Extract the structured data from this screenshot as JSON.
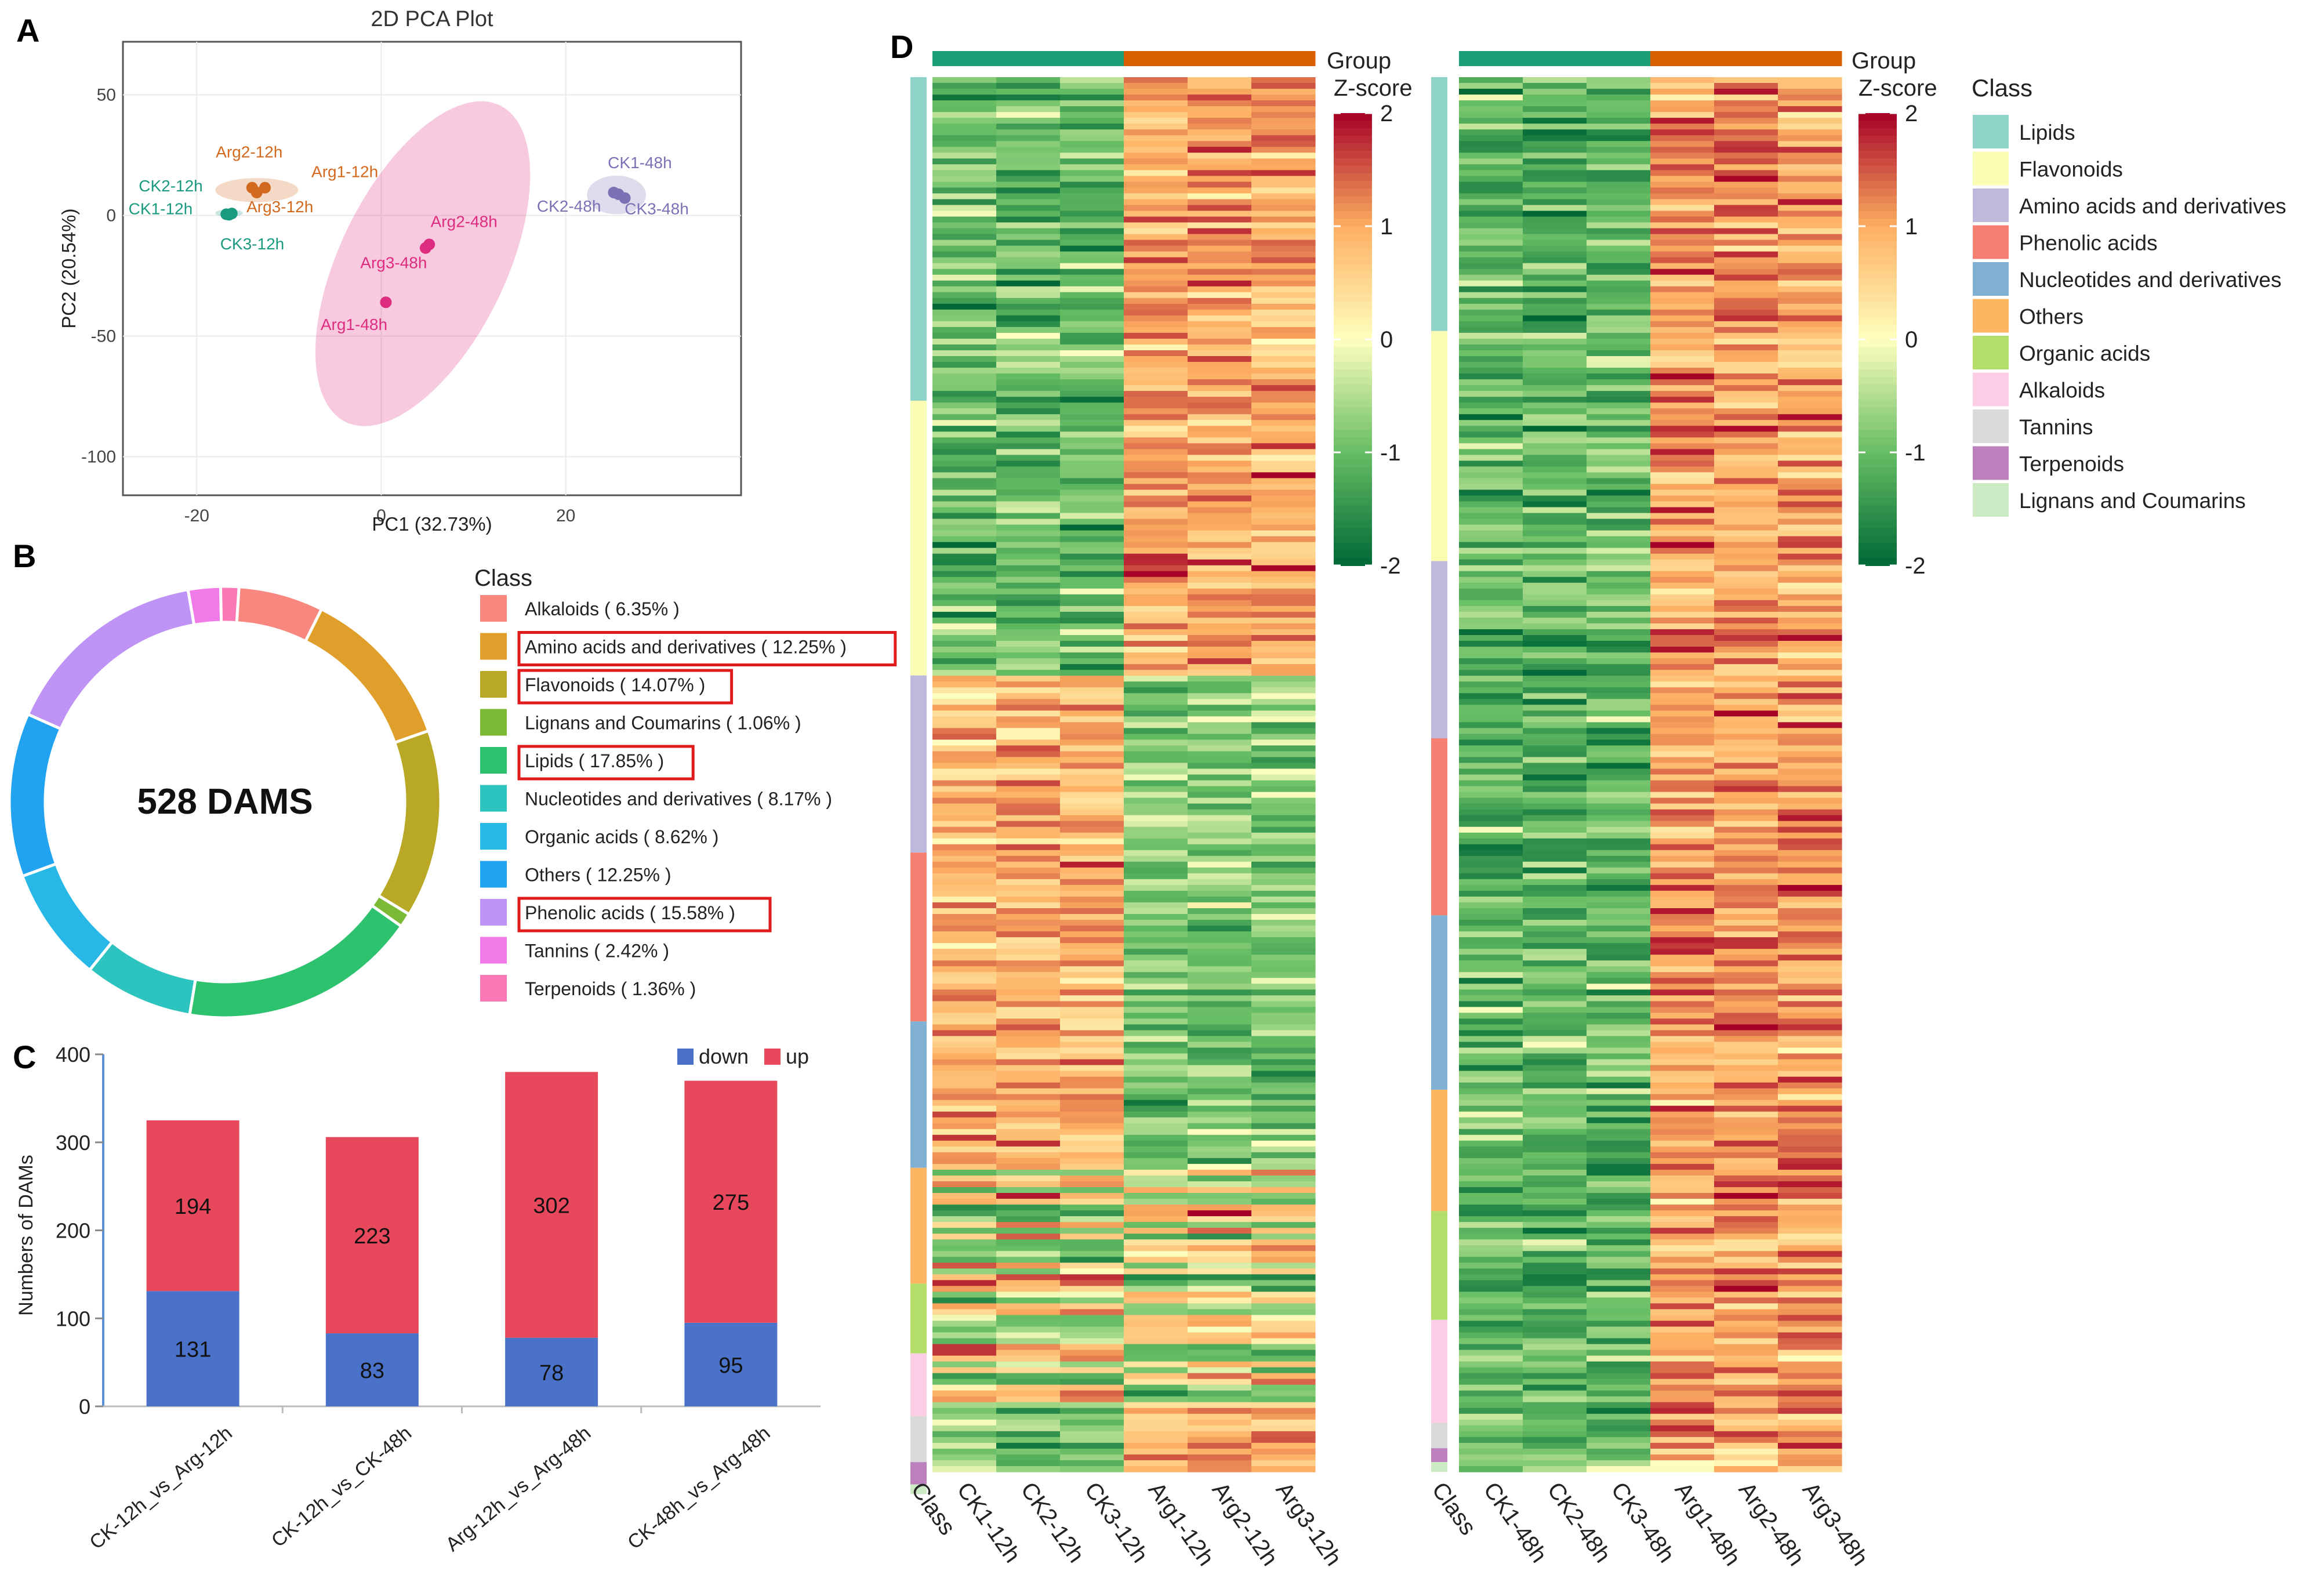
{
  "chart_data": [
    {
      "panel": "A",
      "type": "scatter",
      "title": "2D PCA Plot",
      "xlabel": "PC1 (32.73%)",
      "ylabel": "PC2 (20.54%)",
      "xlim": [
        -28,
        39
      ],
      "ylim": [
        -116,
        72
      ],
      "xticks": [
        -20,
        0,
        20
      ],
      "xtick_labels": [
        "-20",
        "0",
        "20"
      ],
      "yticks": [
        50,
        0,
        -50,
        -100
      ],
      "ytick_labels": [
        "50",
        "0",
        "-50",
        "-100"
      ],
      "groups": [
        {
          "name": "CK-12h",
          "color": "#1a9a80",
          "ellipse": {
            "cx": -16.5,
            "cy": 1,
            "rx": 1.5,
            "ry": 1.5,
            "angle": 0
          },
          "points": [
            {
              "label": "CK1-12h",
              "x": -16.8,
              "y": 0.5
            },
            {
              "label": "CK2-12h",
              "x": -16.2,
              "y": 0.8
            },
            {
              "label": "CK3-12h",
              "x": -16.5,
              "y": 0.3
            }
          ]
        },
        {
          "name": "Arg-12h",
          "color": "#d2691e",
          "ellipse": {
            "cx": -13.5,
            "cy": 10.5,
            "rx": 4.5,
            "ry": 5,
            "angle": 0
          },
          "points": [
            {
              "label": "Arg2-12h",
              "x": -14.0,
              "y": 11.5
            },
            {
              "label": "Arg1-12h",
              "x": -12.6,
              "y": 11.5
            },
            {
              "label": "Arg3-12h",
              "x": -13.5,
              "y": 9.5
            }
          ]
        },
        {
          "name": "CK-48h",
          "color": "#7b72b5",
          "ellipse": {
            "cx": 25.5,
            "cy": 8.5,
            "rx": 3.2,
            "ry": 8,
            "angle": 0
          },
          "points": [
            {
              "label": "CK1-48h",
              "x": 25.2,
              "y": 9.5
            },
            {
              "label": "CK2-48h",
              "x": 25.7,
              "y": 8.8
            },
            {
              "label": "CK3-48h",
              "x": 26.4,
              "y": 7.2
            }
          ]
        },
        {
          "name": "Arg-48h",
          "color": "#de2d80",
          "ellipse": {
            "cx": 4.5,
            "cy": -20,
            "rx": 9,
            "ry": 73,
            "angle": 26
          },
          "points": [
            {
              "label": "Arg2-48h",
              "x": 5.2,
              "y": -12
            },
            {
              "label": "Arg3-48h",
              "x": 4.8,
              "y": -13.5
            },
            {
              "label": "Arg1-48h",
              "x": 0.5,
              "y": -36
            }
          ]
        }
      ]
    },
    {
      "panel": "B",
      "type": "pie",
      "center_label": "528 DAMS",
      "legend_title": "Class",
      "highlighted": [
        "Amino acids and derivatives",
        "Flavonoids",
        "Lipids",
        "Phenolic acids"
      ],
      "slices": [
        {
          "name": "Alkaloids",
          "value": 6.35,
          "label": "Alkaloids ( 6.35% )",
          "color": "#f8877f"
        },
        {
          "name": "Amino acids and derivatives",
          "value": 12.25,
          "label": "Amino acids and derivatives ( 12.25% )",
          "color": "#e09e2a"
        },
        {
          "name": "Flavonoids",
          "value": 14.07,
          "label": "Flavonoids ( 14.07% )",
          "color": "#b8a825"
        },
        {
          "name": "Lignans and Coumarins",
          "value": 1.06,
          "label": "Lignans and Coumarins ( 1.06% )",
          "color": "#7cba35"
        },
        {
          "name": "Lipids",
          "value": 17.85,
          "label": "Lipids ( 17.85% )",
          "color": "#2cc26e"
        },
        {
          "name": "Nucleotides and derivatives",
          "value": 8.17,
          "label": "Nucleotides and derivatives ( 8.17% )",
          "color": "#2dc4bf"
        },
        {
          "name": "Organic acids",
          "value": 8.62,
          "label": "Organic acids ( 8.62% )",
          "color": "#28b8e8"
        },
        {
          "name": "Others",
          "value": 12.25,
          "label": "Others ( 12.25% )",
          "color": "#21a3f2"
        },
        {
          "name": "Phenolic acids",
          "value": 15.58,
          "label": "Phenolic acids ( 15.58% )",
          "color": "#be93f5"
        },
        {
          "name": "Tannins",
          "value": 2.42,
          "label": "Tannins ( 2.42% )",
          "color": "#f07ae8"
        },
        {
          "name": "Terpenoids",
          "value": 1.36,
          "label": "Terpenoids ( 1.36% )",
          "color": "#fa78b5"
        }
      ]
    },
    {
      "panel": "C",
      "type": "bar",
      "stacked": true,
      "ylabel": "Numbers of DAMs",
      "ylim": [
        0,
        400
      ],
      "yticks": [
        0,
        100,
        200,
        300,
        400
      ],
      "categories": [
        "CK-12h_vs_Arg-12h",
        "CK-12h_vs_CK-48h",
        "Arg-12h_vs_Arg-48h",
        "CK-48h_vs_Arg-48h"
      ],
      "series": [
        {
          "name": "down",
          "color": "#4a72c8",
          "values": [
            131,
            83,
            78,
            95
          ]
        },
        {
          "name": "up",
          "color": "#e8485c",
          "values": [
            194,
            223,
            302,
            275
          ]
        }
      ]
    },
    {
      "panel": "D",
      "type": "heatmap",
      "colorscale_title": "Z-score",
      "colorscale_range": [
        -2,
        2
      ],
      "colorscale_ticks": [
        "2",
        "1",
        "0",
        "-1",
        "-2"
      ],
      "group_title": "Group",
      "class_legend_title": "Class",
      "class_legend": [
        {
          "name": "Lipids",
          "color": "#8fd3c9"
        },
        {
          "name": "Flavonoids",
          "color": "#fafcb4"
        },
        {
          "name": "Amino acids and derivatives",
          "color": "#bdbadb"
        },
        {
          "name": "Phenolic acids",
          "color": "#f58072"
        },
        {
          "name": "Nucleotides and derivatives",
          "color": "#80b0d4"
        },
        {
          "name": "Others",
          "color": "#fdb562"
        },
        {
          "name": "Organic acids",
          "color": "#b3de69"
        },
        {
          "name": "Alkaloids",
          "color": "#fccde5"
        },
        {
          "name": "Tannins",
          "color": "#d9d9d9"
        },
        {
          "name": "Terpenoids",
          "color": "#bc80bd"
        },
        {
          "name": "Lignans and Coumarins",
          "color": "#ccebc5"
        }
      ],
      "heatmaps": [
        {
          "columns": [
            "CK1-12h",
            "CK2-12h",
            "CK3-12h",
            "Arg1-12h",
            "Arg2-12h",
            "Arg3-12h"
          ],
          "column_groups": [
            "CK",
            "CK",
            "CK",
            "Arg",
            "Arg",
            "Arg"
          ],
          "class_axis_label": "Class",
          "class_sizes": [
            0.232,
            0.197,
            0.127,
            0.121,
            0.105,
            0.083,
            0.05,
            0.045,
            0.033,
            0.016,
            0.007
          ],
          "row_count": 240
        },
        {
          "columns": [
            "CK1-48h",
            "CK2-48h",
            "CK3-48h",
            "Arg1-48h",
            "Arg2-48h",
            "Arg3-48h"
          ],
          "column_groups": [
            "CK",
            "CK",
            "CK",
            "Arg",
            "Arg",
            "Arg"
          ],
          "class_axis_label": "Class",
          "class_sizes": [
            0.182,
            0.165,
            0.127,
            0.127,
            0.125,
            0.087,
            0.078,
            0.074,
            0.018,
            0.01,
            0.007
          ],
          "row_count": 240
        }
      ],
      "group_colors": {
        "CK": "#1b9e77",
        "Arg": "#d95f02"
      }
    }
  ],
  "panel_labels": [
    "A",
    "B",
    "C",
    "D"
  ],
  "legend_labels": {
    "down": "down",
    "up": "up"
  }
}
